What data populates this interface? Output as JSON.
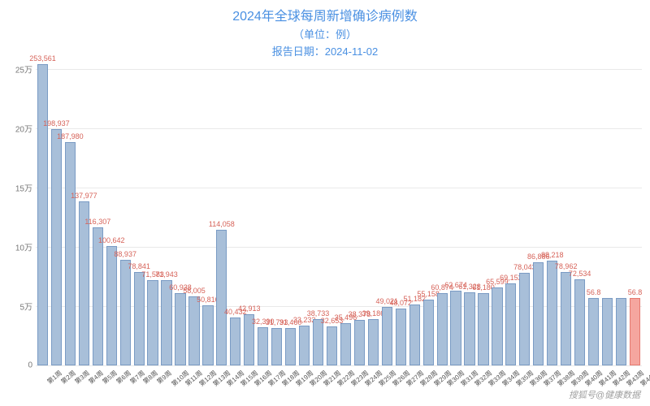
{
  "chart": {
    "type": "bar",
    "title": "2024年全球每周新增确诊病例数",
    "subtitle": "（单位：例）",
    "report_date_label": "报告日期：2024-11-02",
    "title_color": "#4a90e2",
    "title_fontsize": 16,
    "subtitle_fontsize": 13,
    "ylim": [
      0,
      260000
    ],
    "ytick_step": 50000,
    "yticks": [
      "0",
      "5万",
      "10万",
      "15万",
      "20万",
      "25万"
    ],
    "grid_color": "#e9e9e9",
    "background_color": "#ffffff",
    "bar_width": 0.78,
    "bar_fill_color": "#a8bfd9",
    "bar_border_color": "#7a9bc4",
    "highlight_fill_color": "#f5a69f",
    "highlight_border_color": "#e67a70",
    "label_color": "#d66258",
    "label_fontsize": 9,
    "categories": [
      "第1周",
      "第2周",
      "第3周",
      "第4周",
      "第5周",
      "第6周",
      "第7周",
      "第8周",
      "第9周",
      "第10周",
      "第11周",
      "第12周",
      "第13周",
      "第14周",
      "第15周",
      "第16周",
      "第17周",
      "第18周",
      "第19周",
      "第20周",
      "第21周",
      "第22周",
      "第23周",
      "第24周",
      "第25周",
      "第26周",
      "第27周",
      "第28周",
      "第29周",
      "第30周",
      "第31周",
      "第32周",
      "第33周",
      "第34周",
      "第35周",
      "第36周",
      "第37周",
      "第38周",
      "第39周",
      "第40周",
      "第41周",
      "第42周",
      "第43周",
      "第44周"
    ],
    "values": [
      253561,
      198937,
      187980,
      137977,
      116307,
      100642,
      88937,
      78841,
      71583,
      71943,
      60938,
      58005,
      50816,
      114058,
      40432,
      42913,
      32390,
      31793,
      31460,
      33232,
      38733,
      32653,
      35496,
      38378,
      39186,
      49021,
      48072,
      51182,
      55158,
      60874,
      62674,
      61328,
      61180,
      65599,
      69152,
      78043,
      86886,
      88218,
      78962,
      72534,
      56800,
      56800,
      56800,
      56800
    ],
    "value_labels": [
      "253,561",
      "198,937",
      "187,980",
      "137,977",
      "116,307",
      "100,642",
      "88,937",
      "78,841",
      "71,583",
      "71,943",
      "60,938",
      "58,005",
      "50,816",
      "114,058",
      "40,432",
      "42,913",
      "32,390",
      "31,793",
      "31,460",
      "33,232",
      "38,733",
      "32,653",
      "35,496",
      "38,378",
      "39,186",
      "49,021",
      "48,072",
      "51,182",
      "55,158",
      "60,874",
      "62,674",
      "61,328",
      "61,180",
      "65,599",
      "69,152",
      "78,043",
      "86,886",
      "88,218",
      "78,962",
      "72,534",
      "56.8",
      "",
      "",
      "56.8"
    ],
    "highlight_index": 43
  },
  "watermark": "搜狐号@健康数据"
}
